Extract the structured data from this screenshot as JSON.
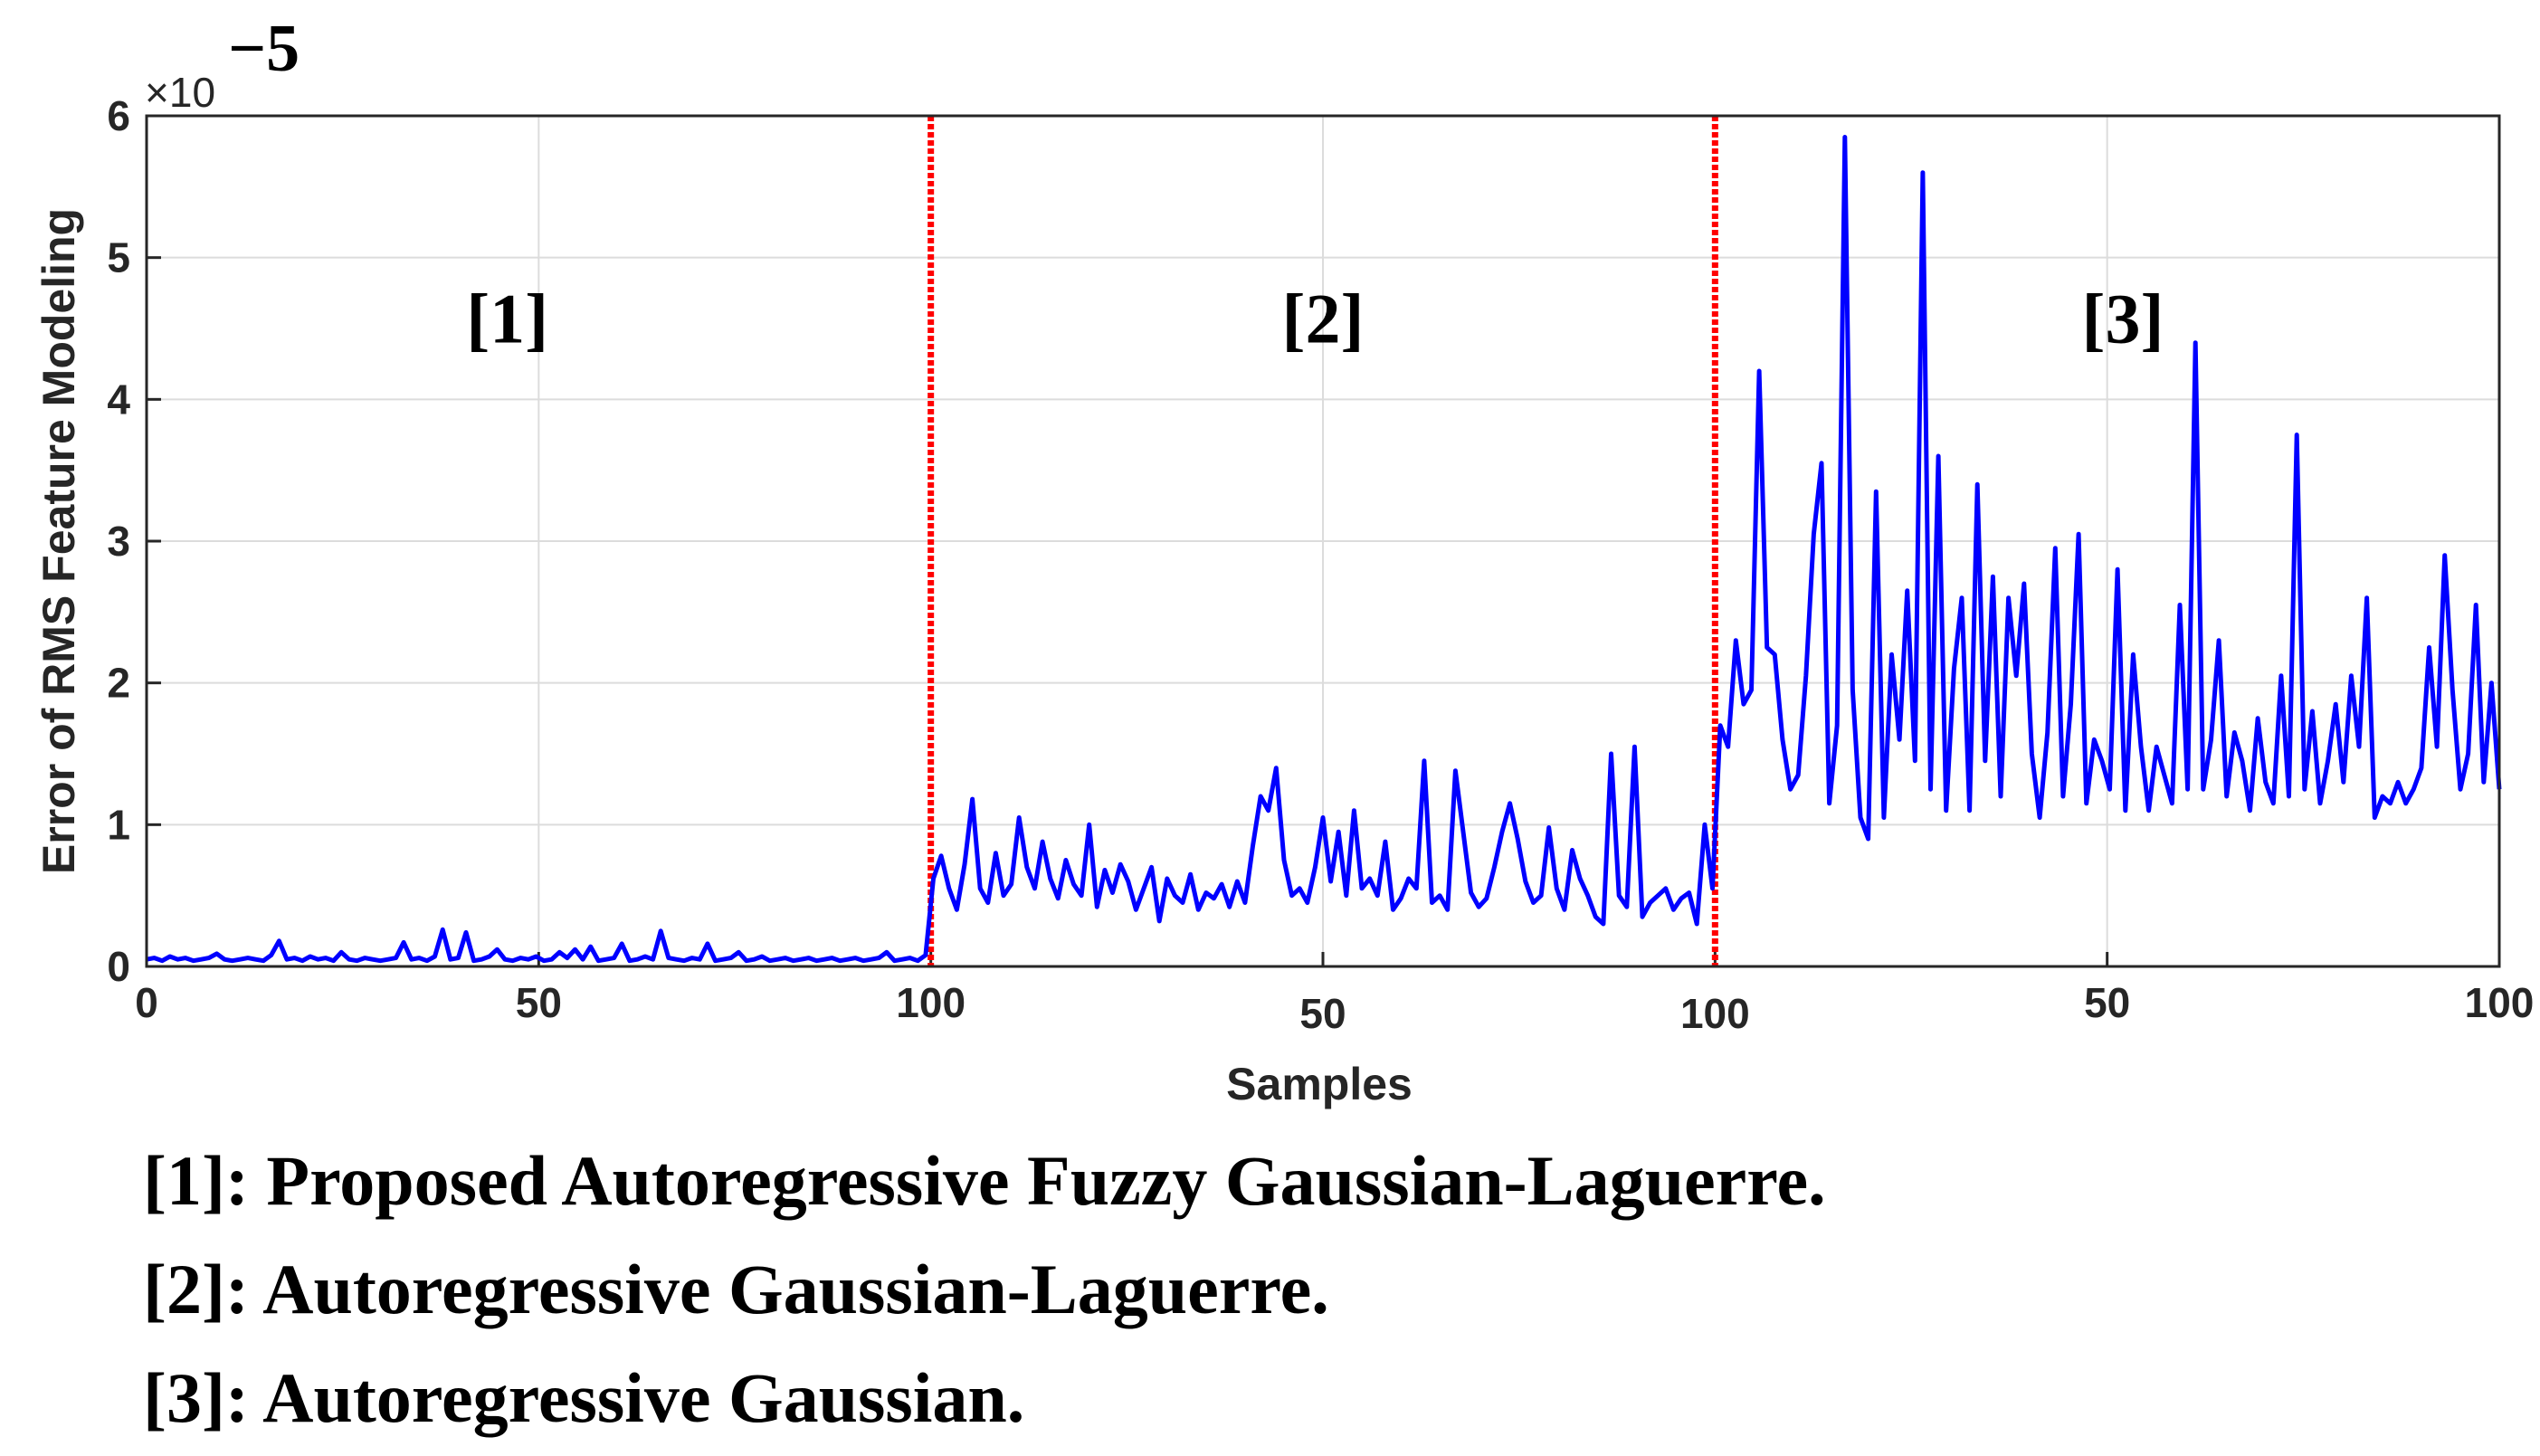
{
  "chart_data": {
    "type": "line",
    "title": "",
    "xlabel": "Samples",
    "ylabel": "Error of RMS Feature Modeling",
    "y_multiplier_label": "×10",
    "y_exponent": "−5",
    "ylim": [
      0,
      6
    ],
    "y_ticks": [
      "0",
      "1",
      "2",
      "3",
      "4",
      "5",
      "6"
    ],
    "x_tick_labels": [
      {
        "pos": 0,
        "label": "0"
      },
      {
        "pos": 50,
        "label": "50"
      },
      {
        "pos": 100,
        "label": "100"
      },
      {
        "pos": 150,
        "label": "50"
      },
      {
        "pos": 200,
        "label": "100"
      },
      {
        "pos": 250,
        "label": "50"
      },
      {
        "pos": 300,
        "label": "100"
      }
    ],
    "xlim": [
      0,
      300
    ],
    "grid": true,
    "series_color": "#0000ff",
    "divider_color": "#ff0000",
    "dividers": [
      100,
      200
    ],
    "region_labels": [
      {
        "x": 46,
        "y": 4.4,
        "label": "[1]"
      },
      {
        "x": 150,
        "y": 4.4,
        "label": "[2]"
      },
      {
        "x": 252,
        "y": 4.4,
        "label": "[3]"
      }
    ],
    "series": [
      {
        "values": [
          0.05,
          0.06,
          0.04,
          0.07,
          0.05,
          0.06,
          0.04,
          0.05,
          0.06,
          0.09,
          0.05,
          0.04,
          0.05,
          0.06,
          0.05,
          0.04,
          0.08,
          0.18,
          0.05,
          0.06,
          0.04,
          0.07,
          0.05,
          0.06,
          0.04,
          0.1,
          0.05,
          0.04,
          0.06,
          0.05,
          0.04,
          0.05,
          0.06,
          0.17,
          0.05,
          0.06,
          0.04,
          0.07,
          0.26,
          0.05,
          0.06,
          0.24,
          0.04,
          0.05,
          0.07,
          0.12,
          0.05,
          0.04,
          0.06,
          0.05,
          0.07,
          0.04,
          0.05,
          0.1,
          0.06,
          0.12,
          0.05,
          0.14,
          0.04,
          0.05,
          0.06,
          0.16,
          0.04,
          0.05,
          0.07,
          0.05,
          0.25,
          0.06,
          0.05,
          0.04,
          0.06,
          0.05,
          0.16,
          0.04,
          0.05,
          0.06,
          0.1,
          0.04,
          0.05,
          0.07,
          0.04,
          0.05,
          0.06,
          0.04,
          0.05,
          0.06,
          0.04,
          0.05,
          0.06,
          0.04,
          0.05,
          0.06,
          0.04,
          0.05,
          0.06,
          0.1,
          0.04,
          0.05,
          0.06,
          0.04,
          0.08,
          0.62,
          0.78,
          0.55,
          0.4,
          0.72,
          1.18,
          0.55,
          0.45,
          0.8,
          0.5,
          0.58,
          1.05,
          0.7,
          0.55,
          0.88,
          0.62,
          0.48,
          0.75,
          0.58,
          0.5,
          1.0,
          0.42,
          0.68,
          0.52,
          0.72,
          0.6,
          0.4,
          0.55,
          0.7,
          0.32,
          0.62,
          0.5,
          0.45,
          0.65,
          0.4,
          0.52,
          0.48,
          0.58,
          0.42,
          0.6,
          0.45,
          0.85,
          1.2,
          1.1,
          1.4,
          0.75,
          0.5,
          0.55,
          0.45,
          0.7,
          1.05,
          0.6,
          0.95,
          0.5,
          1.1,
          0.55,
          0.62,
          0.5,
          0.88,
          0.4,
          0.48,
          0.62,
          0.55,
          1.45,
          0.45,
          0.5,
          0.4,
          1.38,
          0.95,
          0.52,
          0.42,
          0.48,
          0.7,
          0.95,
          1.15,
          0.9,
          0.6,
          0.45,
          0.5,
          0.98,
          0.55,
          0.4,
          0.82,
          0.62,
          0.5,
          0.35,
          0.3,
          1.5,
          0.5,
          0.42,
          1.55,
          0.35,
          0.45,
          0.5,
          0.55,
          0.4,
          0.48,
          0.52,
          0.3,
          1.0,
          0.55,
          1.7,
          1.55,
          2.3,
          1.85,
          1.95,
          4.2,
          2.25,
          2.2,
          1.6,
          1.25,
          1.35,
          2.05,
          3.05,
          3.55,
          1.15,
          1.7,
          5.85,
          1.95,
          1.05,
          0.9,
          3.35,
          1.05,
          2.2,
          1.6,
          2.65,
          1.45,
          5.6,
          1.25,
          3.6,
          1.1,
          2.1,
          2.6,
          1.1,
          3.4,
          1.45,
          2.75,
          1.2,
          2.6,
          2.05,
          2.7,
          1.5,
          1.05,
          1.65,
          2.95,
          1.2,
          1.85,
          3.05,
          1.15,
          1.6,
          1.45,
          1.25,
          2.8,
          1.1,
          2.2,
          1.55,
          1.1,
          1.55,
          1.35,
          1.15,
          2.55,
          1.25,
          4.4,
          1.25,
          1.6,
          2.3,
          1.2,
          1.65,
          1.45,
          1.1,
          1.75,
          1.3,
          1.15,
          2.05,
          1.2,
          3.75,
          1.25,
          1.8,
          1.15,
          1.45,
          1.85,
          1.3,
          2.05,
          1.55,
          2.6,
          1.05,
          1.2,
          1.15,
          1.3,
          1.15,
          1.25,
          1.4,
          2.25,
          1.55,
          2.9,
          1.95,
          1.25,
          1.5,
          2.55,
          1.3,
          2.0,
          1.25
        ]
      }
    ],
    "legend_lines": [
      "[1]: Proposed Autoregressive Fuzzy Gaussian-Laguerre.",
      "[2]: Autoregressive Gaussian-Laguerre.",
      "[3]: Autoregressive Gaussian."
    ]
  }
}
